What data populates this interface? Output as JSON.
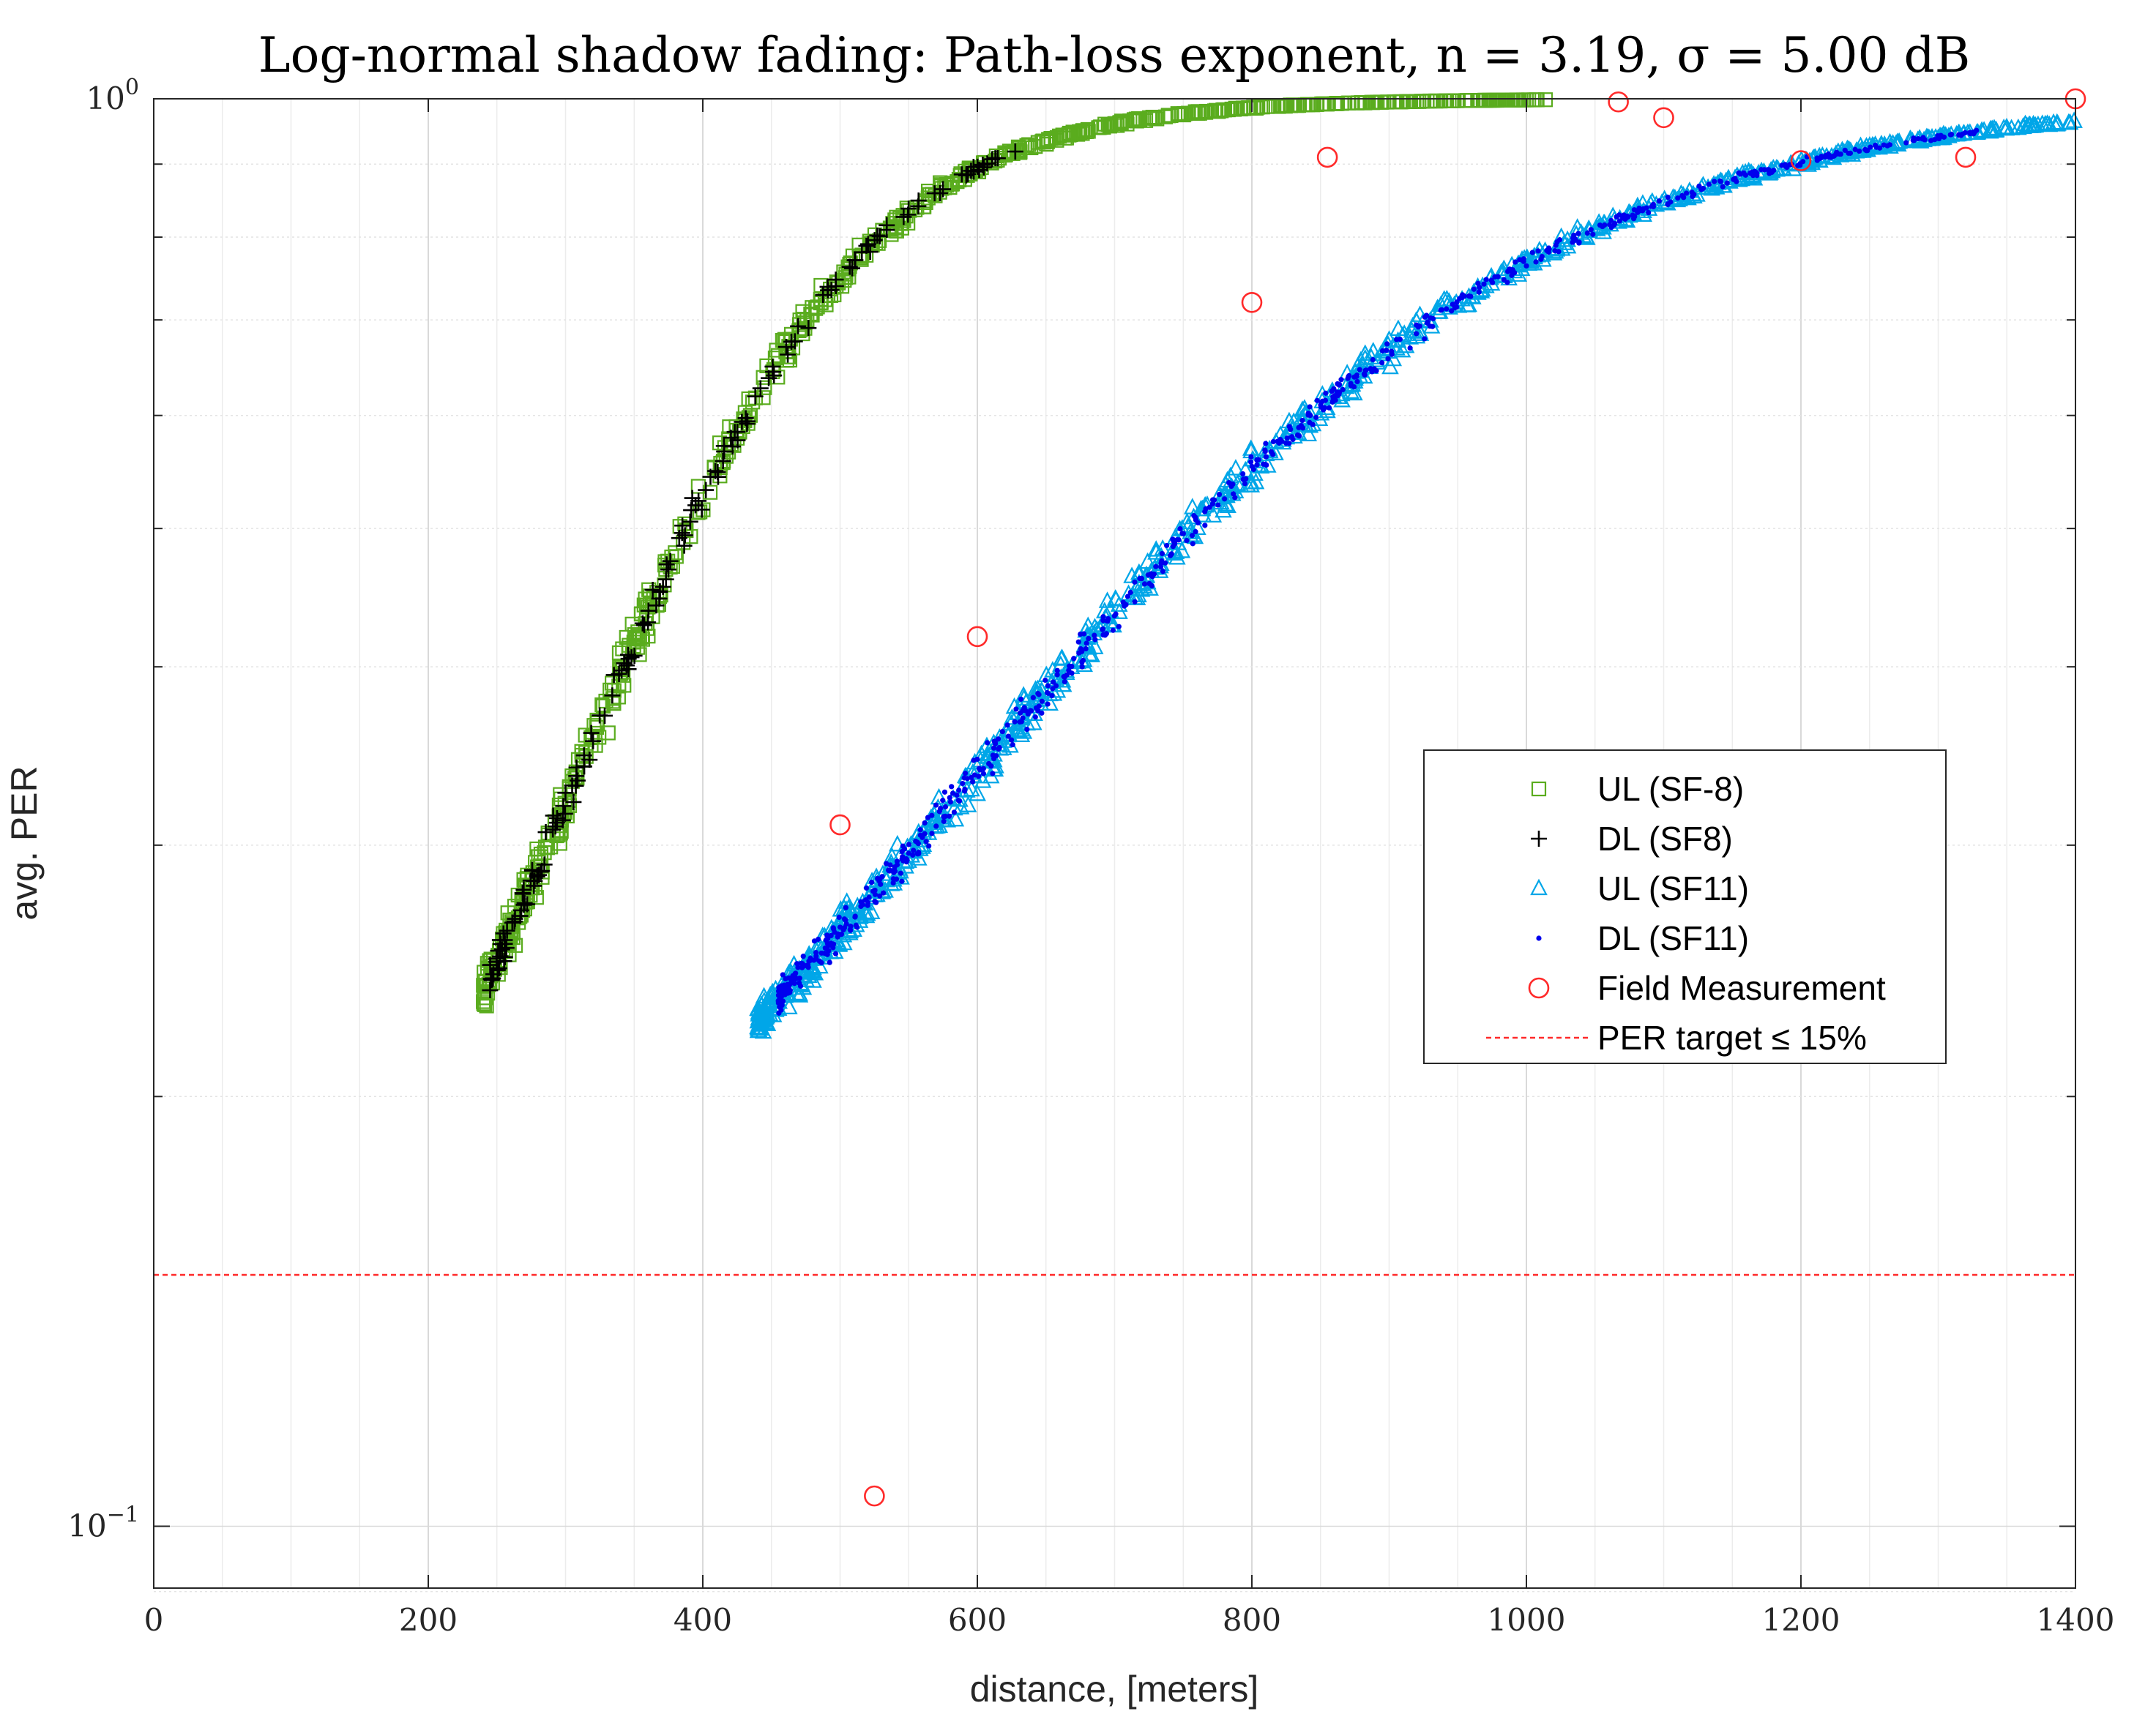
{
  "chart_data": {
    "type": "scatter",
    "title": "Log-normal shadow fading: Path-loss exponent, n = 3.19, σ = 5.00 dB",
    "xlabel": "distance, [meters]",
    "ylabel": "avg. PER",
    "xscale": "linear",
    "yscale": "log",
    "xlim": [
      0,
      1400
    ],
    "ylim": [
      0.0905,
      1.0
    ],
    "xticks": [
      0,
      200,
      400,
      600,
      800,
      1000,
      1200,
      1400
    ],
    "yticks": [
      {
        "value": 0.1,
        "base": "10",
        "exp": "−1"
      },
      {
        "value": 1.0,
        "base": "10",
        "exp": "0"
      }
    ],
    "grid": true,
    "legend_position": "center-right",
    "model": {
      "PER_dB_slope_note": ""
    },
    "series": [
      {
        "name": "UL (SF-8)",
        "marker": "square",
        "color": "#5aac1e",
        "curve": {
          "d0": 240,
          "d1": 1020,
          "d_half": 370
        }
      },
      {
        "name": "DL (SF8)",
        "marker": "plus",
        "color": "#000000",
        "curve": {
          "d0": 245,
          "d1": 630,
          "d_half": 370
        }
      },
      {
        "name": "UL (SF11)",
        "marker": "triangle",
        "color": "#00a6e8",
        "curve": {
          "d0": 440,
          "d1": 1400,
          "d_half": 720
        }
      },
      {
        "name": "DL (SF11)",
        "marker": "dot",
        "color": "#0000ee",
        "curve": {
          "d0": 455,
          "d1": 1330,
          "d_half": 720
        }
      },
      {
        "name": "Field Measurement",
        "marker": "circle",
        "color": "#ff2a2a",
        "x": [
          500,
          525,
          600,
          800,
          855,
          1067,
          1100,
          1200,
          1320,
          1400
        ],
        "y": [
          0.31,
          0.105,
          0.42,
          0.72,
          0.91,
          0.995,
          0.97,
          0.905,
          0.91,
          1.0
        ]
      }
    ],
    "reference_lines": [
      {
        "name": "PER target ≤ 15%",
        "y": 0.15,
        "style": "dashed",
        "color": "#ff2a2a"
      }
    ]
  }
}
